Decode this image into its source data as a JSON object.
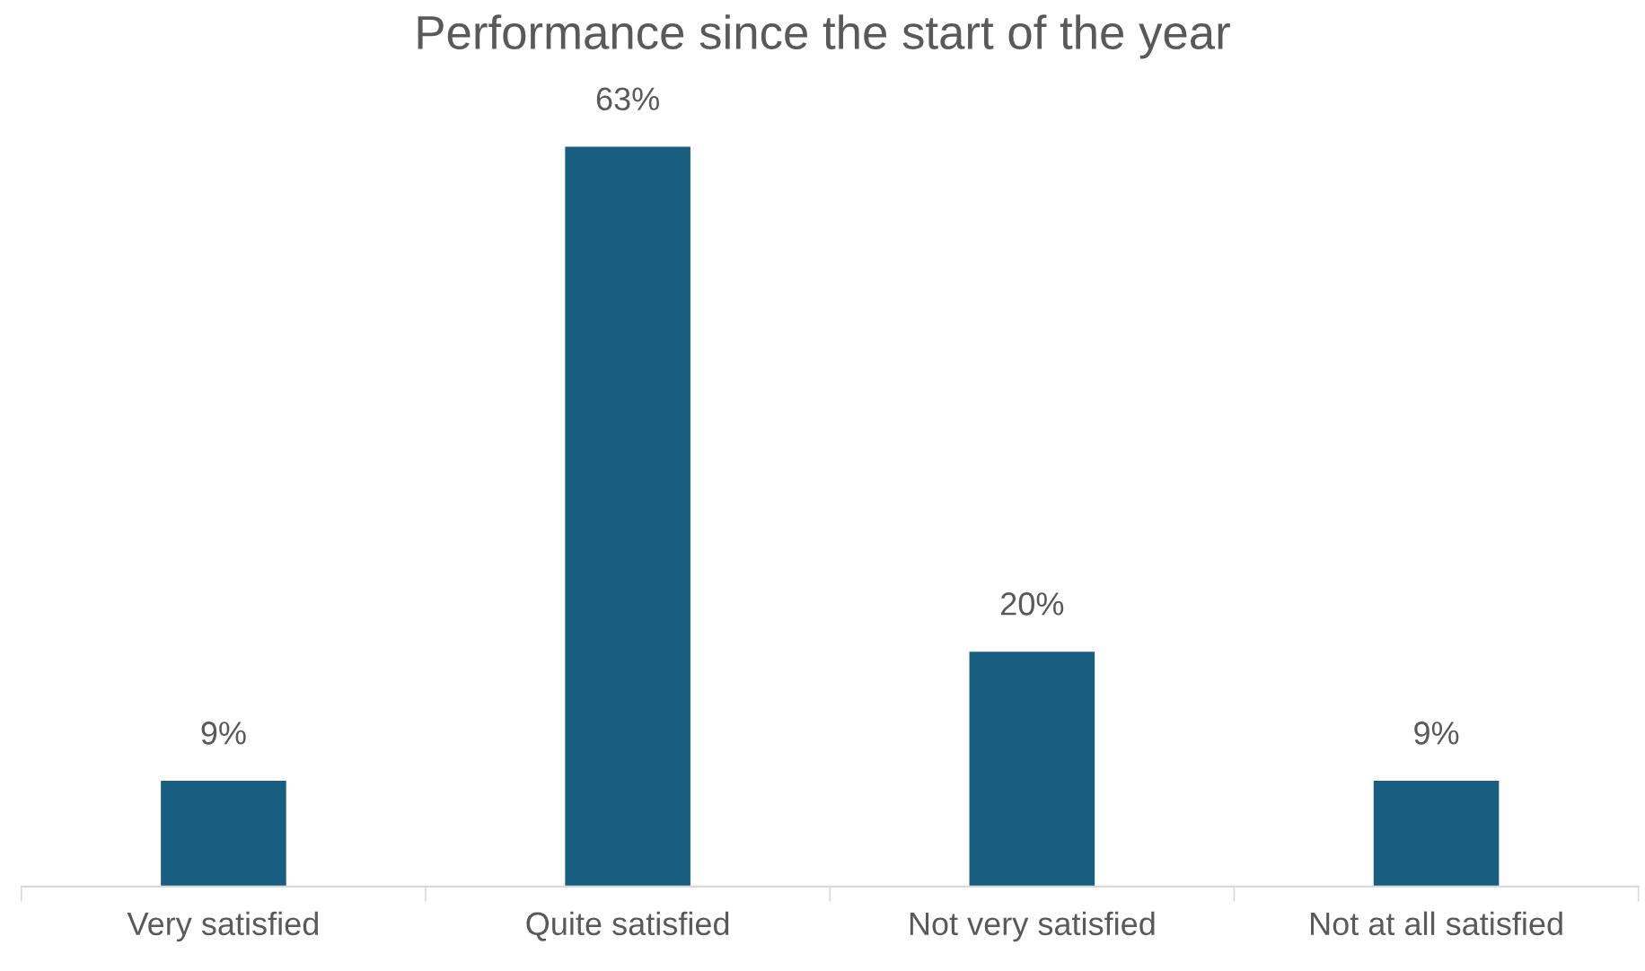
{
  "chart_data": {
    "type": "bar",
    "title": "Performance since the start of the year",
    "categories": [
      "Very satisfied",
      "Quite satisfied",
      "Not very satisfied",
      "Not at all satisfied"
    ],
    "values": [
      9,
      63,
      20,
      9
    ],
    "value_labels": [
      "9%",
      "63%",
      "20%",
      "9%"
    ],
    "color": "#175e80"
  }
}
